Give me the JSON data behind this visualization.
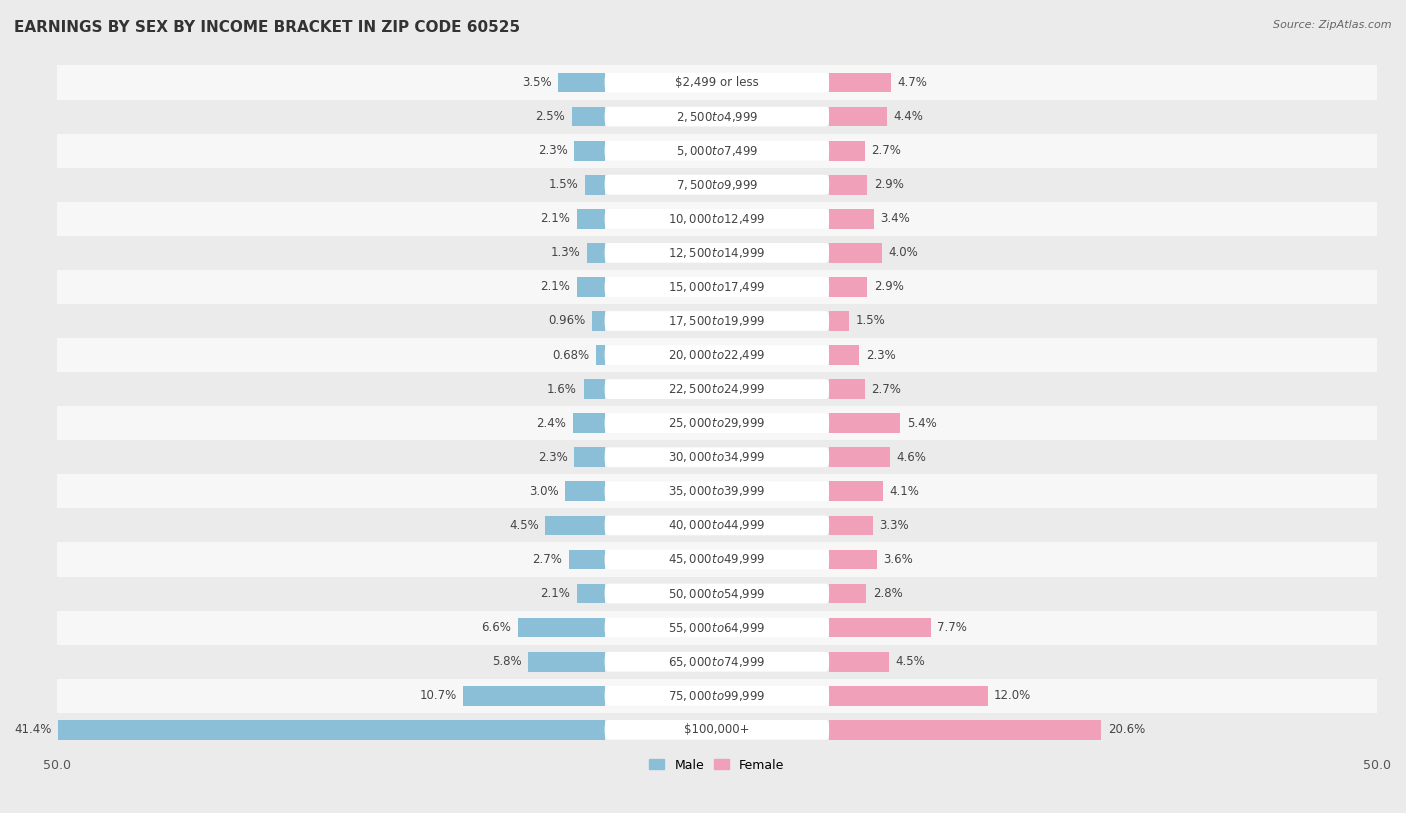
{
  "title": "EARNINGS BY SEX BY INCOME BRACKET IN ZIP CODE 60525",
  "source": "Source: ZipAtlas.com",
  "categories": [
    "$2,499 or less",
    "$2,500 to $4,999",
    "$5,000 to $7,499",
    "$7,500 to $9,999",
    "$10,000 to $12,499",
    "$12,500 to $14,999",
    "$15,000 to $17,499",
    "$17,500 to $19,999",
    "$20,000 to $22,499",
    "$22,500 to $24,999",
    "$25,000 to $29,999",
    "$30,000 to $34,999",
    "$35,000 to $39,999",
    "$40,000 to $44,999",
    "$45,000 to $49,999",
    "$50,000 to $54,999",
    "$55,000 to $64,999",
    "$65,000 to $74,999",
    "$75,000 to $99,999",
    "$100,000+"
  ],
  "male_values": [
    3.5,
    2.5,
    2.3,
    1.5,
    2.1,
    1.3,
    2.1,
    0.96,
    0.68,
    1.6,
    2.4,
    2.3,
    3.0,
    4.5,
    2.7,
    2.1,
    6.6,
    5.8,
    10.7,
    41.4
  ],
  "female_values": [
    4.7,
    4.4,
    2.7,
    2.9,
    3.4,
    4.0,
    2.9,
    1.5,
    2.3,
    2.7,
    5.4,
    4.6,
    4.1,
    3.3,
    3.6,
    2.8,
    7.7,
    4.5,
    12.0,
    20.6
  ],
  "male_color": "#8bbfd8",
  "female_color": "#f0a0b8",
  "bg_color": "#ebebeb",
  "row_color_odd": "#f7f7f7",
  "row_color_even": "#ebebeb",
  "title_fontsize": 11,
  "label_fontsize": 8.5,
  "category_fontsize": 8.5,
  "axis_max": 50.0
}
